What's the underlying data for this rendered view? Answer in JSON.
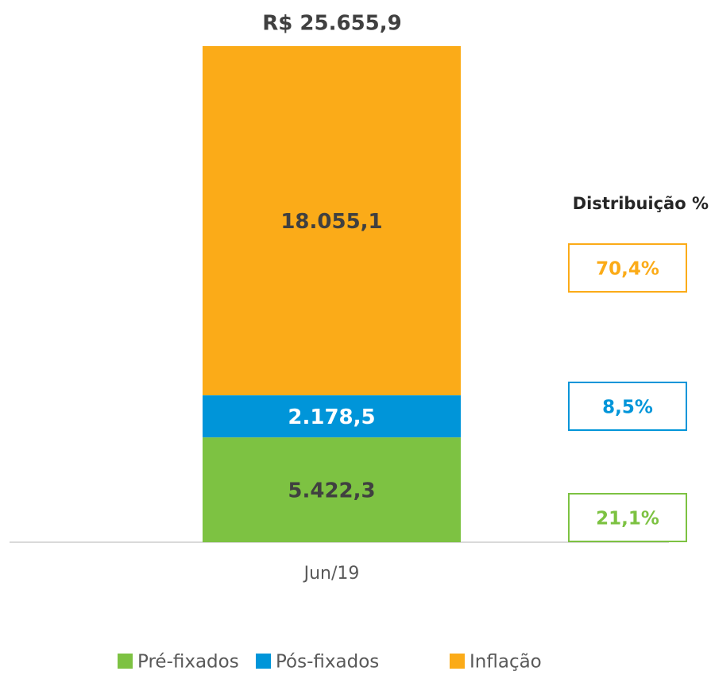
{
  "chart_data": {
    "type": "stacked_bar",
    "title": "R$ 25.655,9",
    "total": 25655.9,
    "categories": [
      "Jun/19"
    ],
    "series": [
      {
        "name": "Pré-fixados",
        "color": "#7dc242",
        "values": [
          5422.3
        ],
        "value_labels": [
          "5.422,3"
        ]
      },
      {
        "name": "Pós-fixados",
        "color": "#0095d9",
        "values": [
          2178.5
        ],
        "value_labels": [
          "2.178,5"
        ]
      },
      {
        "name": "Inflação",
        "color": "#fbab18",
        "values": [
          18055.1
        ],
        "value_labels": [
          "18.055,1"
        ]
      }
    ],
    "distribution": {
      "title": "Distribuição %",
      "values": [
        21.1,
        8.5,
        70.4
      ],
      "value_labels": [
        "21,1%",
        "8,5%",
        "70,4%"
      ]
    }
  }
}
